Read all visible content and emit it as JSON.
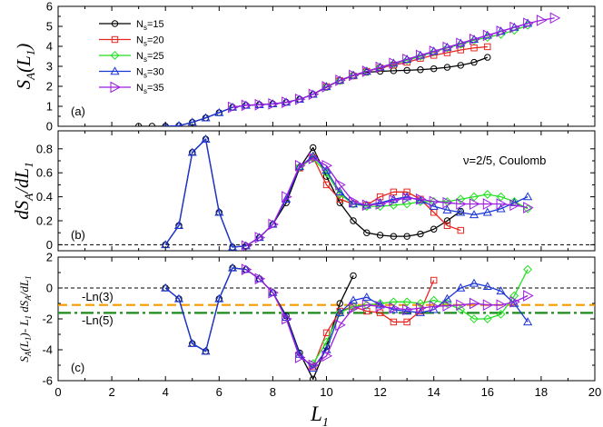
{
  "chart_data": {
    "type": "line",
    "x_label": "L1",
    "x_range": [
      0,
      20
    ],
    "x_ticks": [
      0,
      2,
      4,
      6,
      8,
      10,
      12,
      14,
      16,
      18,
      20
    ],
    "legend": {
      "entries": [
        "Ns=15",
        "Ns=20",
        "Ns=25",
        "Ns=30",
        "Ns=35"
      ],
      "placement": "top-left"
    },
    "series_styles": [
      {
        "name": "Ns=15",
        "color": "#000000",
        "marker": "circle"
      },
      {
        "name": "Ns=20",
        "color": "#e8261e",
        "marker": "square"
      },
      {
        "name": "Ns=25",
        "color": "#22e022",
        "marker": "diamond"
      },
      {
        "name": "Ns=30",
        "color": "#1c36d6",
        "marker": "triangle-up"
      },
      {
        "name": "Ns=35",
        "color": "#9b1ee0",
        "marker": "triangle-right"
      }
    ],
    "panels": [
      {
        "id": "a",
        "label": "(a)",
        "y_label": "SA(L1)",
        "y_range": [
          0,
          6
        ],
        "y_ticks": [
          0,
          1,
          2,
          3,
          4,
          5,
          6
        ],
        "annotations": [],
        "reference_lines": [],
        "series": [
          {
            "name": "Ns=15",
            "x": [
              3,
              3.5,
              4,
              4.5,
              5,
              5.5,
              6,
              6.5,
              7,
              7.5,
              8,
              8.5,
              9,
              9.5,
              10,
              10.5,
              11,
              11.5,
              12,
              12.5,
              13,
              13.5,
              14,
              14.5,
              15,
              15.5,
              16
            ],
            "values": [
              0,
              0,
              0,
              0.03,
              0.2,
              0.42,
              0.68,
              0.95,
              1.05,
              1.08,
              1.12,
              1.2,
              1.35,
              1.6,
              1.95,
              2.3,
              2.55,
              2.7,
              2.75,
              2.78,
              2.8,
              2.83,
              2.88,
              2.95,
              3.05,
              3.2,
              3.45
            ]
          },
          {
            "name": "Ns=20",
            "x": [
              10,
              10.5,
              11,
              11.5,
              12,
              12.5,
              13,
              13.5,
              14,
              14.5,
              15,
              15.5,
              16
            ],
            "values": [
              1.98,
              2.28,
              2.52,
              2.75,
              2.92,
              3.06,
              3.2,
              3.4,
              3.55,
              3.68,
              3.82,
              3.92,
              3.98
            ]
          },
          {
            "name": "Ns=25",
            "x": [
              10,
              10.5,
              11,
              11.5,
              12,
              12.5,
              13,
              13.5,
              14,
              14.5,
              15,
              15.5,
              16,
              16.5,
              17,
              17.5
            ],
            "values": [
              1.98,
              2.28,
              2.55,
              2.75,
              2.95,
              3.12,
              3.3,
              3.5,
              3.72,
              3.92,
              4.1,
              4.3,
              4.45,
              4.6,
              4.8,
              5.05
            ]
          },
          {
            "name": "Ns=30",
            "x": [
              4,
              4.5,
              5,
              5.5,
              6,
              6.5,
              7,
              7.5,
              8,
              8.5,
              9,
              9.5,
              10,
              10.5,
              11,
              11.5,
              12,
              12.5,
              13,
              13.5,
              14,
              14.5,
              15,
              15.5,
              16,
              16.5,
              17,
              17.5
            ],
            "values": [
              0,
              0.03,
              0.2,
              0.42,
              0.68,
              0.95,
              1.05,
              1.08,
              1.12,
              1.2,
              1.35,
              1.6,
              1.98,
              2.3,
              2.55,
              2.75,
              2.95,
              3.15,
              3.35,
              3.55,
              3.75,
              3.95,
              4.15,
              4.35,
              4.55,
              4.75,
              4.95,
              5.15
            ]
          },
          {
            "name": "Ns=35",
            "x": [
              6.5,
              7,
              7.5,
              8,
              8.5,
              9,
              9.5,
              10,
              10.5,
              11,
              11.5,
              12,
              12.5,
              13,
              13.5,
              14,
              14.5,
              15,
              15.5,
              16,
              16.5,
              17,
              17.5,
              18,
              18.5
            ],
            "values": [
              0.95,
              1.05,
              1.08,
              1.12,
              1.2,
              1.35,
              1.6,
              1.98,
              2.3,
              2.55,
              2.75,
              2.95,
              3.15,
              3.35,
              3.55,
              3.75,
              3.95,
              4.15,
              4.35,
              4.55,
              4.75,
              4.95,
              5.15,
              5.3,
              5.42
            ]
          }
        ]
      },
      {
        "id": "b",
        "label": "(b)",
        "y_label": "dSA/dL1",
        "y_range": [
          -0.05,
          0.95
        ],
        "y_ticks": [
          0,
          0.2,
          0.4,
          0.6,
          0.8
        ],
        "annotations": [
          "ν=2/5, Coulomb"
        ],
        "reference_lines": [
          {
            "y": 0,
            "color": "#000000",
            "style": "dashed",
            "label": ""
          }
        ],
        "series": [
          {
            "name": "Ns=15",
            "x": [
              4,
              4.5,
              5,
              5.5,
              6,
              6.5,
              7,
              7.5,
              8,
              8.5,
              9,
              9.5,
              10,
              10.5,
              11,
              11.5,
              12,
              12.5,
              13,
              13.5,
              14,
              14.5,
              15
            ],
            "values": [
              0,
              0.16,
              0.77,
              0.88,
              0.27,
              -0.02,
              -0.01,
              0.06,
              0.17,
              0.35,
              0.64,
              0.81,
              0.57,
              0.35,
              0.2,
              0.1,
              0.08,
              0.07,
              0.07,
              0.09,
              0.13,
              0.2,
              0.28
            ]
          },
          {
            "name": "Ns=20",
            "x": [
              9,
              9.5,
              10,
              10.5,
              11,
              11.5,
              12,
              12.5,
              13,
              13.5,
              14,
              14.5,
              15
            ],
            "values": [
              0.64,
              0.73,
              0.5,
              0.38,
              0.34,
              0.33,
              0.4,
              0.44,
              0.44,
              0.38,
              0.27,
              0.16,
              0.12
            ]
          },
          {
            "name": "Ns=25",
            "x": [
              9,
              9.5,
              10,
              10.5,
              11,
              11.5,
              12,
              12.5,
              13,
              13.5,
              14,
              14.5,
              15,
              15.5,
              16,
              16.5,
              17,
              17.5
            ],
            "values": [
              0.65,
              0.72,
              0.6,
              0.42,
              0.34,
              0.32,
              0.32,
              0.33,
              0.34,
              0.36,
              0.36,
              0.36,
              0.38,
              0.4,
              0.42,
              0.4,
              0.36,
              0.3
            ]
          },
          {
            "name": "Ns=30",
            "x": [
              4,
              4.5,
              5,
              5.5,
              6,
              6.5,
              7,
              7.5,
              8,
              8.5,
              9,
              9.5,
              10,
              10.5,
              11,
              11.5,
              12,
              12.5,
              13,
              13.5,
              14,
              14.5,
              15,
              15.5,
              16,
              16.5,
              17,
              17.5
            ],
            "values": [
              0,
              0.16,
              0.77,
              0.88,
              0.27,
              -0.02,
              -0.01,
              0.06,
              0.17,
              0.38,
              0.65,
              0.74,
              0.62,
              0.44,
              0.34,
              0.33,
              0.35,
              0.38,
              0.4,
              0.37,
              0.32,
              0.29,
              0.27,
              0.25,
              0.27,
              0.3,
              0.35,
              0.4
            ]
          },
          {
            "name": "Ns=35",
            "x": [
              7,
              7.5,
              8,
              8.5,
              9,
              9.5,
              10,
              10.5,
              11,
              11.5,
              12,
              12.5,
              13,
              13.5,
              14,
              14.5,
              15,
              15.5,
              16,
              16.5,
              17,
              17.5
            ],
            "values": [
              -0.01,
              0.06,
              0.17,
              0.4,
              0.66,
              0.72,
              0.66,
              0.5,
              0.36,
              0.33,
              0.34,
              0.37,
              0.39,
              0.38,
              0.36,
              0.35,
              0.34,
              0.34,
              0.34,
              0.34,
              0.33,
              0.31
            ]
          }
        ]
      },
      {
        "id": "c",
        "label": "(c)",
        "y_label": "SA(L1) - L1 dSA/dL1",
        "y_range": [
          -6,
          2
        ],
        "y_ticks": [
          -6,
          -4,
          -2,
          0,
          2
        ],
        "annotations": [],
        "reference_lines": [
          {
            "y": 0,
            "color": "#000000",
            "style": "dashed",
            "label": ""
          },
          {
            "y": -1.0986,
            "color": "#f59a00",
            "style": "dashed",
            "label": "-Ln(3)"
          },
          {
            "y": -1.6094,
            "color": "#1b8a1b",
            "style": "dashdot",
            "label": "-Ln(5)"
          }
        ],
        "series": [
          {
            "name": "Ns=15",
            "x": [
              4,
              4.5,
              5,
              5.5,
              6,
              6.5,
              7,
              7.5,
              8,
              8.5,
              9,
              9.5,
              10,
              10.5,
              11
            ],
            "values": [
              0,
              -0.7,
              -3.6,
              -4.1,
              -0.7,
              1.3,
              1.2,
              0.6,
              -0.3,
              -1.8,
              -4.2,
              -5.9,
              -3.8,
              -1.0,
              0.8
            ]
          },
          {
            "name": "Ns=20",
            "x": [
              9.5,
              10,
              10.5,
              11,
              11.5,
              12,
              12.5,
              13,
              13.5,
              14
            ],
            "values": [
              -5.1,
              -2.9,
              -1.5,
              -1.2,
              -1.5,
              -1.6,
              -2.2,
              -2.2,
              -1.5,
              0.5
            ]
          },
          {
            "name": "Ns=25",
            "x": [
              9.5,
              10,
              10.5,
              11,
              11.5,
              12,
              12.5,
              13,
              13.5,
              14,
              14.5,
              15,
              15.5,
              16,
              16.5,
              17,
              17.5
            ],
            "values": [
              -4.9,
              -3.5,
              -1.6,
              -1.2,
              -1.1,
              -1.0,
              -0.9,
              -0.9,
              -1.0,
              -0.8,
              -1.0,
              -1.4,
              -2.0,
              -2.0,
              -1.7,
              -0.5,
              1.2
            ]
          },
          {
            "name": "Ns=30",
            "x": [
              4,
              4.5,
              5,
              5.5,
              6,
              6.5,
              7,
              7.5,
              8,
              8.5,
              9,
              9.5,
              10,
              10.5,
              11,
              11.5,
              12,
              12.5,
              13,
              13.5,
              14,
              14.5,
              15,
              15.5,
              16,
              16.5,
              17,
              17.5
            ],
            "values": [
              0,
              -0.7,
              -3.6,
              -4.1,
              -0.7,
              1.3,
              1.2,
              0.6,
              -0.3,
              -1.9,
              -4.3,
              -5.2,
              -4.0,
              -1.6,
              -0.8,
              -0.6,
              -1.1,
              -1.4,
              -1.5,
              -1.6,
              -1.4,
              -0.7,
              0,
              0.3,
              0.1,
              -0.2,
              -1.0,
              -2.2
            ]
          },
          {
            "name": "Ns=35",
            "x": [
              7,
              7.5,
              8,
              8.5,
              9,
              9.5,
              10,
              10.5,
              11,
              11.5,
              12,
              12.5,
              13,
              13.5,
              14,
              14.5,
              15,
              15.5,
              16,
              16.5,
              17,
              17.5
            ],
            "values": [
              1.2,
              0.6,
              -0.3,
              -2.0,
              -4.5,
              -5.0,
              -4.4,
              -2.4,
              -1.3,
              -1.1,
              -1.2,
              -1.3,
              -1.4,
              -1.3,
              -1.2,
              -1.15,
              -1.1,
              -1.0,
              -1.1,
              -1.1,
              -0.9,
              -0.5
            ]
          }
        ]
      }
    ]
  }
}
